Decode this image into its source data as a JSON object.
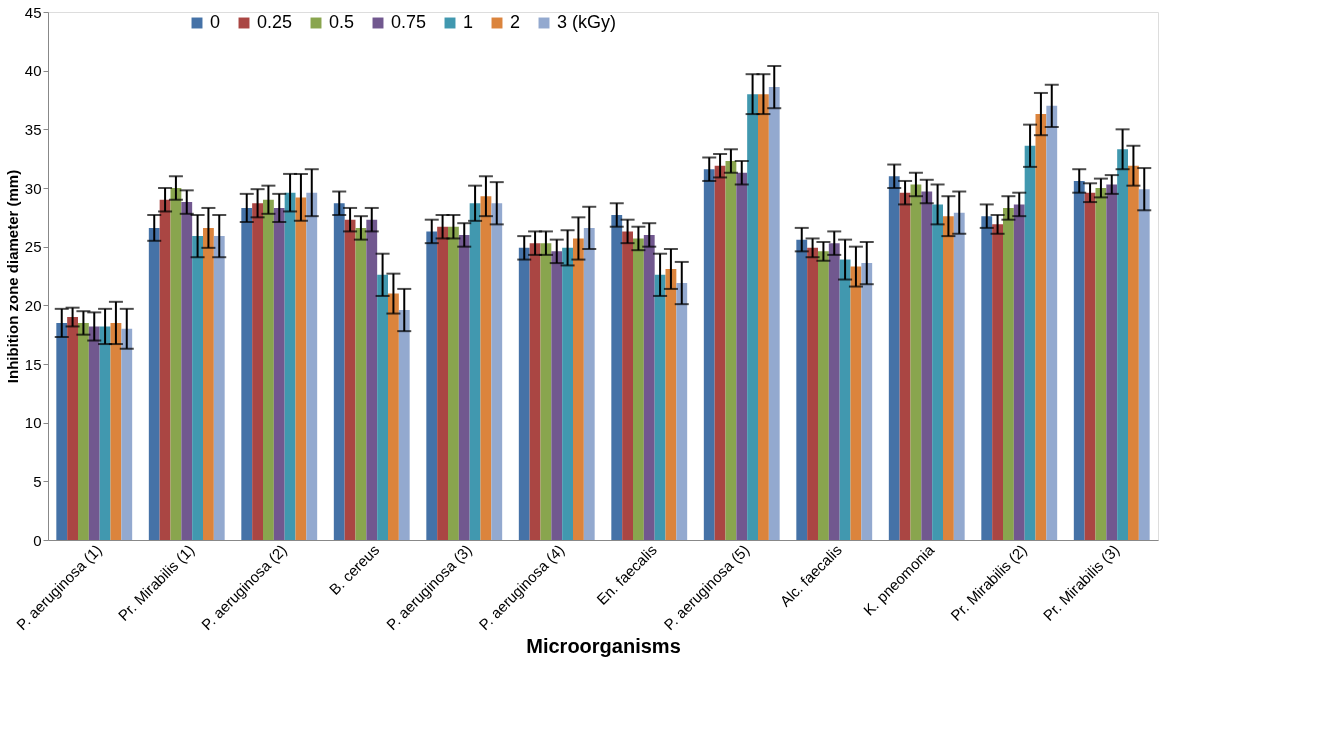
{
  "chart_data": {
    "type": "bar",
    "xlabel": "Microorganisms",
    "ylabel": "Inhibition zone diameter (mm)",
    "legend_title": "(kGy)",
    "legend": "top",
    "grid": false,
    "categories": [
      "P. aeruginosa (1)",
      "Pr. Mirabilis (1)",
      "P. aeruginosa (2)",
      "B. cereus",
      "P. aeruginosa (3)",
      "P. aeruginosa (4)",
      "En. faecalis",
      "P. aeruginosa (5)",
      "Alc. faecalis",
      "K. pneomonia",
      "Pr. Mirabilis (2)",
      "Pr. Mirabilis (3)"
    ],
    "ylim": [
      0,
      45
    ],
    "yticks": [
      0,
      5,
      10,
      15,
      20,
      25,
      30,
      35,
      40,
      45
    ],
    "series": [
      {
        "name": "0",
        "color": "#4572a7",
        "values": [
          18.5,
          26.6,
          28.3,
          28.7,
          26.3,
          24.9,
          27.7,
          31.6,
          25.6,
          31,
          27.6,
          30.6
        ],
        "errors": [
          1.2,
          1.1,
          1.2,
          1,
          1,
          1,
          1,
          1,
          1,
          1,
          1,
          1
        ]
      },
      {
        "name": "0.25",
        "color": "#aa4643",
        "values": [
          19,
          29,
          28.7,
          27.3,
          26.7,
          25.3,
          26.3,
          31.9,
          24.9,
          29.6,
          26.9,
          29.6
        ],
        "errors": [
          0.8,
          1,
          1.2,
          1,
          1,
          1,
          1,
          1,
          0.8,
          1,
          0.8,
          0.8
        ]
      },
      {
        "name": "0.5",
        "color": "#89a54e",
        "values": [
          18.5,
          30,
          29,
          26.6,
          26.7,
          25.3,
          25.7,
          32.3,
          24.6,
          30.3,
          28.3,
          30
        ],
        "errors": [
          1,
          1,
          1.2,
          1,
          1,
          1,
          1,
          1,
          0.8,
          1,
          1,
          0.8
        ]
      },
      {
        "name": "0.75",
        "color": "#71588f",
        "values": [
          18.2,
          28.8,
          28.3,
          27.3,
          26,
          24.6,
          26,
          31.3,
          25.3,
          29.7,
          28.6,
          30.3
        ],
        "errors": [
          1.2,
          1,
          1.2,
          1,
          1,
          1,
          1,
          1,
          1,
          1,
          1,
          0.8
        ]
      },
      {
        "name": "1",
        "color": "#4198af",
        "values": [
          18.2,
          25.9,
          29.6,
          22.6,
          28.7,
          24.9,
          22.6,
          38,
          23.9,
          28.6,
          33.6,
          33.3
        ],
        "errors": [
          1.5,
          1.8,
          1.6,
          1.8,
          1.5,
          1.5,
          1.8,
          1.7,
          1.7,
          1.7,
          1.8,
          1.7
        ]
      },
      {
        "name": "2",
        "color": "#db843d",
        "values": [
          18.5,
          26.6,
          29.2,
          21,
          29.3,
          25.7,
          23.1,
          38,
          23.3,
          27.6,
          36.3,
          31.9
        ],
        "errors": [
          1.8,
          1.7,
          2,
          1.7,
          1.7,
          1.8,
          1.7,
          1.7,
          1.7,
          1.7,
          1.8,
          1.7
        ]
      },
      {
        "name": "3",
        "color": "#93a9cf",
        "values": [
          18,
          25.9,
          29.6,
          19.6,
          28.7,
          26.6,
          21.9,
          38.6,
          23.6,
          27.9,
          37,
          29.9
        ],
        "errors": [
          1.7,
          1.8,
          2,
          1.8,
          1.8,
          1.8,
          1.8,
          1.8,
          1.8,
          1.8,
          1.8,
          1.8
        ]
      }
    ]
  }
}
